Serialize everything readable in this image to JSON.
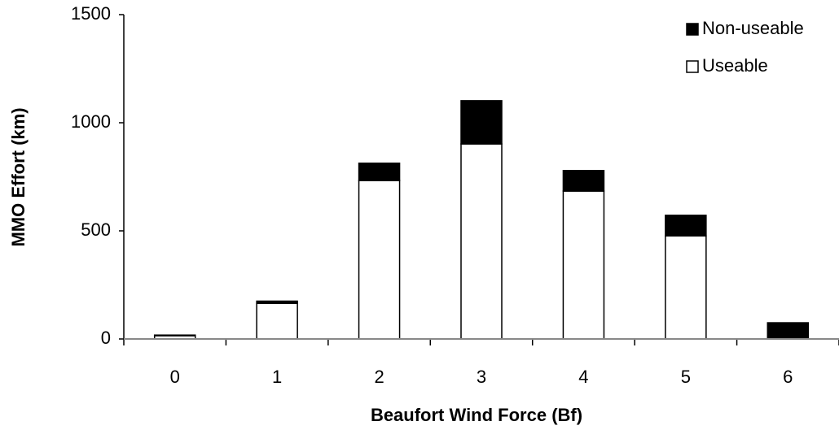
{
  "chart_data": {
    "type": "bar",
    "stacked": true,
    "xlabel": "Beaufort Wind Force (Bf)",
    "ylabel": "MMO Effort (km)",
    "categories": [
      "0",
      "1",
      "2",
      "3",
      "4",
      "5",
      "6"
    ],
    "series": [
      {
        "name": "Non-useable",
        "color": "#000000",
        "values": [
          3,
          10,
          80,
          200,
          95,
          95,
          75
        ]
      },
      {
        "name": "Useable",
        "color": "#ffffff",
        "values": [
          15,
          165,
          733,
          902,
          684,
          477,
          0
        ]
      }
    ],
    "ylim": [
      0,
      1500
    ],
    "yticks": [
      0,
      500,
      1000,
      1500
    ],
    "legend": "upper right"
  }
}
